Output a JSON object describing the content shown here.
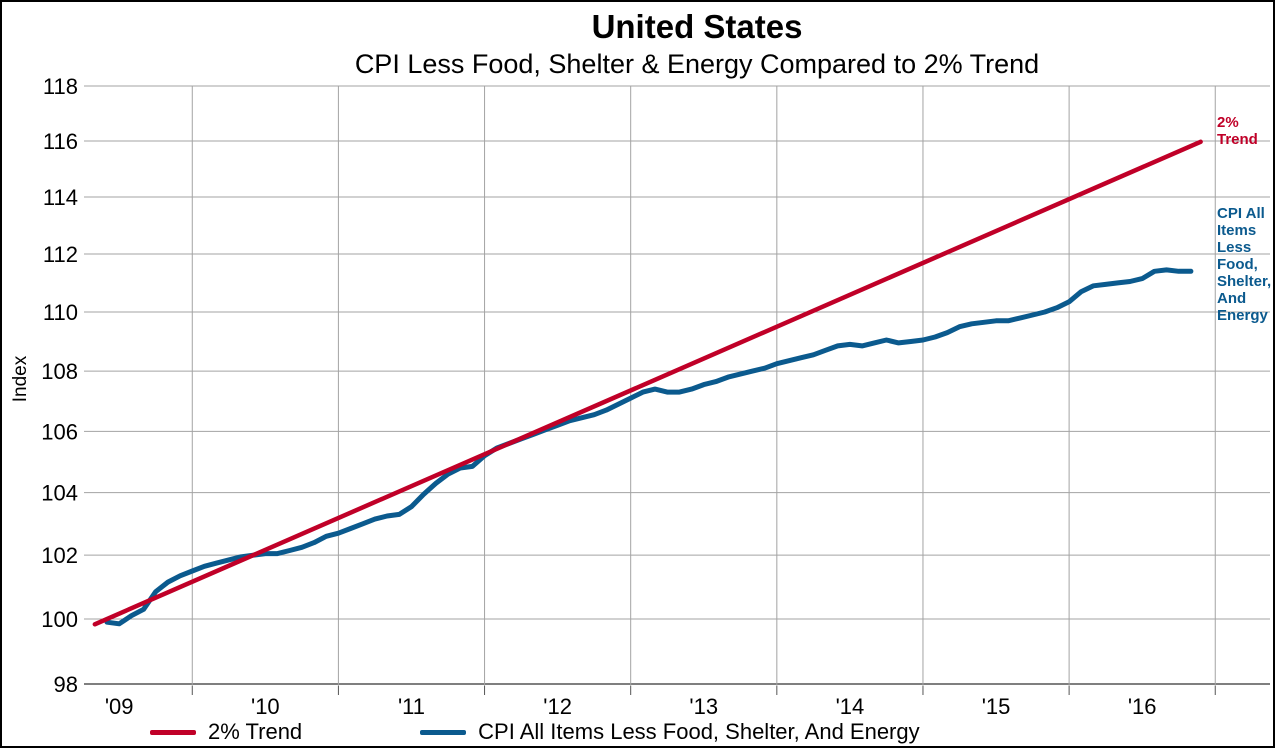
{
  "chart_data": {
    "type": "line",
    "title": "United States",
    "subtitle": "CPI Less Food, Shelter & Energy Compared to 2% Trend",
    "ylabel": "Index",
    "y_axis": {
      "scale": "log",
      "min": 98,
      "max": 118,
      "ticks": [
        98,
        100,
        102,
        104,
        106,
        108,
        110,
        112,
        114,
        116,
        118
      ]
    },
    "x_axis": {
      "tick_labels": [
        "'09",
        "'10",
        "'11",
        "'12",
        "'13",
        "'14",
        "'15",
        "'16"
      ],
      "gridlines_at": "july-of-each-year",
      "start": "2008-12",
      "end": "2016-05"
    },
    "grid": "on",
    "legend_position": "bottom-left",
    "series": [
      {
        "name": "2% Trend",
        "color": "#C00028",
        "kind": "trend",
        "start_value": 100.0,
        "growth_rate_pct_per_year": 2.0,
        "start_month_offset": -1,
        "end_month_offset": 89.8,
        "end_value_approx": 116.2
      },
      {
        "name": "CPI All Items Less Food, Shelter, And Energy",
        "color": "#0B5A8E",
        "kind": "monthly",
        "start": "2008-12",
        "values": [
          99.9,
          99.85,
          100.1,
          100.3,
          100.85,
          101.15,
          101.35,
          101.5,
          101.65,
          101.75,
          101.85,
          101.95,
          102.0,
          102.05,
          102.05,
          102.15,
          102.25,
          102.4,
          102.6,
          102.7,
          102.85,
          103.0,
          103.15,
          103.25,
          103.3,
          103.55,
          103.95,
          104.3,
          104.6,
          104.8,
          104.85,
          105.2,
          105.45,
          105.6,
          105.75,
          105.9,
          106.05,
          106.2,
          106.35,
          106.45,
          106.55,
          106.7,
          106.9,
          107.1,
          107.3,
          107.4,
          107.3,
          107.3,
          107.4,
          107.55,
          107.65,
          107.8,
          107.9,
          108.0,
          108.1,
          108.25,
          108.35,
          108.45,
          108.55,
          108.7,
          108.85,
          108.9,
          108.85,
          108.95,
          109.05,
          108.95,
          109.0,
          109.05,
          109.15,
          109.3,
          109.5,
          109.6,
          109.65,
          109.7,
          109.7,
          109.8,
          109.9,
          110.0,
          110.15,
          110.35,
          110.7,
          110.9,
          110.95,
          111.0,
          111.05,
          111.15,
          111.4,
          111.45,
          111.4,
          111.4
        ]
      }
    ],
    "annotations": [
      {
        "lines": [
          "2%",
          "Trend"
        ],
        "color": "#C00028"
      },
      {
        "lines": [
          "CPI All",
          "Items",
          "Less",
          "Food,",
          "Shelter,",
          "And",
          "Energy"
        ],
        "color": "#0B5A8E"
      }
    ],
    "colors": {
      "trend_red": "#C00028",
      "cpi_blue": "#0B5A8E",
      "gridline_gray": "#A3A3A3",
      "axis_dark": "#555555",
      "background": "#FFFFFF",
      "border": "#000000"
    }
  }
}
